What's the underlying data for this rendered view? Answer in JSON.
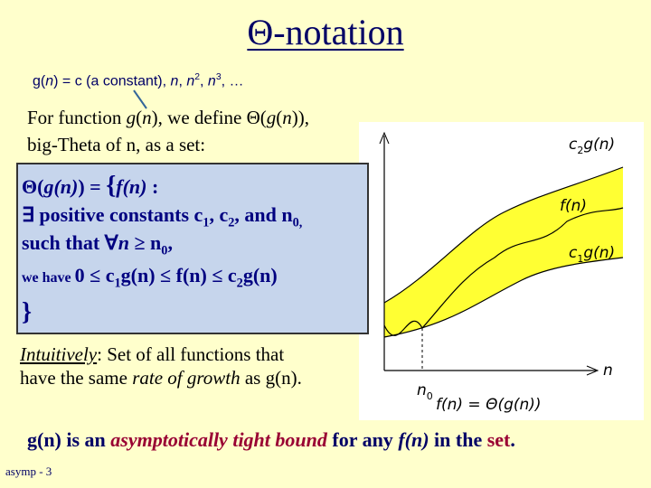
{
  "title": "Θ-notation",
  "note": [
    "g(",
    "n",
    ") = c (a constant), ",
    "n",
    ", ",
    "n",
    "2",
    ", ",
    "n",
    "3",
    ", …"
  ],
  "intro": {
    "line1": [
      "For function ",
      "g",
      "(",
      "n",
      "), we define Θ(",
      "g",
      "(",
      "n",
      ")),"
    ],
    "line2": "big-Theta of n, as a set:"
  },
  "definition": {
    "line1": [
      "Θ(",
      "g(n)",
      ") = ",
      "{",
      "f(n)",
      " :"
    ],
    "line2": [
      "∃ positive constants c",
      "1",
      ", c",
      "2",
      ", and n",
      "0,"
    ],
    "line3": [
      "such that ∀",
      "n",
      " ≥  n",
      "0",
      ","
    ],
    "line4": [
      "we have ",
      "0  ≤  c",
      "1",
      "g(n)  ≤   f(n)  ≤  c",
      "2",
      "g(n)"
    ],
    "line5": "}"
  },
  "intuition": [
    "Intuitively",
    ": Set of all functions that",
    "have the same ",
    "rate of growth",
    " as g(n)."
  ],
  "conclusion": [
    "g(n) is an ",
    "asymptotically tight bound",
    " for any ",
    "f(n)",
    " in the ",
    "set",
    "."
  ],
  "figure": {
    "upper": [
      "c",
      "2",
      "g(n)"
    ],
    "middle": "f(n)",
    "lower": [
      "c",
      "1",
      "g(n)"
    ],
    "x_axis": "n",
    "threshold": [
      "n",
      "0"
    ],
    "caption": "f(n) = Θ(g(n))"
  },
  "footer": "asymp - 3"
}
